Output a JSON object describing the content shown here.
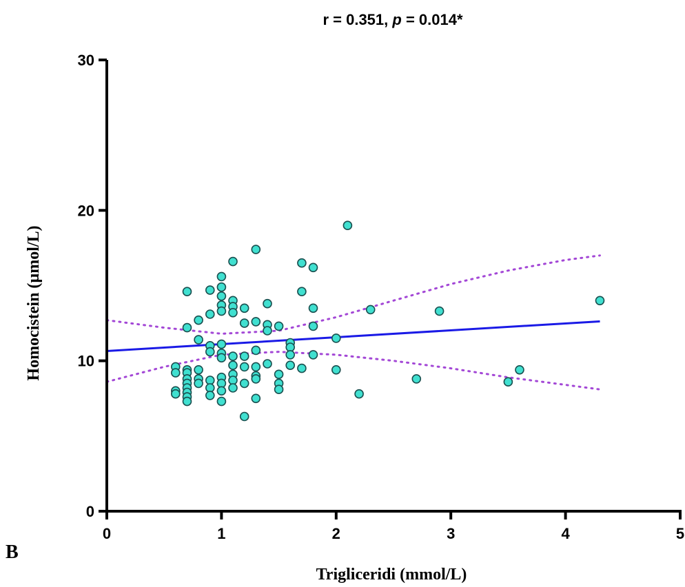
{
  "panel_label": "B",
  "chart_data": {
    "type": "scatter",
    "title_parts": [
      "r = 0.351, ",
      "p",
      " = 0.014*"
    ],
    "xlabel": "Trigliceridi (mmol/L)",
    "ylabel": "Homocistein (µmol/L)",
    "xlim": [
      0,
      5
    ],
    "ylim": [
      0,
      30
    ],
    "xticks": [
      0,
      1,
      2,
      3,
      4,
      5
    ],
    "yticks": [
      0,
      10,
      20,
      30
    ],
    "grid": false,
    "point_color": "#40E0D0",
    "point_edge_color": "#1a4f4f",
    "fit_line_color": "#1a1ae6",
    "ci_color": "#a347d6",
    "points": [
      [
        0.6,
        9.6
      ],
      [
        0.6,
        9.2
      ],
      [
        0.6,
        8.0
      ],
      [
        0.6,
        7.8
      ],
      [
        0.7,
        14.6
      ],
      [
        0.7,
        12.2
      ],
      [
        0.7,
        9.4
      ],
      [
        0.7,
        9.2
      ],
      [
        0.7,
        8.8
      ],
      [
        0.7,
        8.5
      ],
      [
        0.7,
        8.2
      ],
      [
        0.7,
        7.9
      ],
      [
        0.7,
        7.6
      ],
      [
        0.7,
        7.3
      ],
      [
        0.8,
        12.7
      ],
      [
        0.8,
        11.4
      ],
      [
        0.8,
        9.4
      ],
      [
        0.8,
        8.8
      ],
      [
        0.8,
        8.5
      ],
      [
        0.9,
        14.7
      ],
      [
        0.9,
        13.1
      ],
      [
        0.9,
        11.0
      ],
      [
        0.9,
        10.6
      ],
      [
        0.9,
        8.7
      ],
      [
        0.9,
        8.2
      ],
      [
        0.9,
        7.7
      ],
      [
        1.0,
        15.6
      ],
      [
        1.0,
        14.9
      ],
      [
        1.0,
        14.3
      ],
      [
        1.0,
        13.7
      ],
      [
        1.0,
        13.3
      ],
      [
        1.0,
        11.1
      ],
      [
        1.0,
        10.5
      ],
      [
        1.0,
        10.2
      ],
      [
        1.0,
        8.9
      ],
      [
        1.0,
        8.5
      ],
      [
        1.0,
        8.0
      ],
      [
        1.0,
        7.3
      ],
      [
        1.1,
        16.6
      ],
      [
        1.1,
        14.0
      ],
      [
        1.1,
        13.6
      ],
      [
        1.1,
        13.2
      ],
      [
        1.1,
        10.3
      ],
      [
        1.1,
        9.7
      ],
      [
        1.1,
        9.1
      ],
      [
        1.1,
        8.7
      ],
      [
        1.1,
        8.2
      ],
      [
        1.2,
        13.5
      ],
      [
        1.2,
        12.5
      ],
      [
        1.2,
        10.3
      ],
      [
        1.2,
        9.6
      ],
      [
        1.2,
        8.5
      ],
      [
        1.2,
        6.3
      ],
      [
        1.3,
        17.4
      ],
      [
        1.3,
        12.6
      ],
      [
        1.3,
        10.7
      ],
      [
        1.3,
        9.6
      ],
      [
        1.3,
        9.0
      ],
      [
        1.3,
        8.8
      ],
      [
        1.3,
        7.5
      ],
      [
        1.4,
        13.8
      ],
      [
        1.4,
        12.4
      ],
      [
        1.4,
        12.0
      ],
      [
        1.4,
        9.8
      ],
      [
        1.5,
        12.3
      ],
      [
        1.5,
        9.1
      ],
      [
        1.5,
        8.5
      ],
      [
        1.5,
        8.1
      ],
      [
        1.6,
        11.2
      ],
      [
        1.6,
        10.9
      ],
      [
        1.6,
        10.4
      ],
      [
        1.6,
        9.7
      ],
      [
        1.7,
        16.5
      ],
      [
        1.7,
        14.6
      ],
      [
        1.7,
        9.5
      ],
      [
        1.8,
        16.2
      ],
      [
        1.8,
        13.5
      ],
      [
        1.8,
        12.3
      ],
      [
        1.8,
        10.4
      ],
      [
        2.0,
        11.5
      ],
      [
        2.0,
        9.4
      ],
      [
        2.1,
        19.0
      ],
      [
        2.2,
        7.8
      ],
      [
        2.3,
        13.4
      ],
      [
        2.7,
        8.8
      ],
      [
        2.9,
        13.3
      ],
      [
        3.5,
        8.6
      ],
      [
        3.6,
        9.4
      ],
      [
        4.3,
        14.0
      ]
    ],
    "fit_line": {
      "x": [
        0,
        4.3
      ],
      "y": [
        10.65,
        12.62
      ]
    },
    "ci_upper": {
      "x": [
        0,
        0.5,
        1.0,
        1.5,
        2.0,
        2.5,
        3.0,
        3.5,
        4.0,
        4.3
      ],
      "y": [
        12.7,
        12.2,
        11.8,
        12.0,
        12.9,
        14.0,
        15.1,
        16.0,
        16.7,
        17.0
      ]
    },
    "ci_lower": {
      "x": [
        0,
        0.5,
        1.0,
        1.5,
        2.0,
        2.5,
        3.0,
        3.5,
        4.0,
        4.3
      ],
      "y": [
        8.6,
        9.6,
        10.4,
        10.6,
        10.4,
        10.0,
        9.5,
        8.9,
        8.4,
        8.1
      ]
    }
  }
}
